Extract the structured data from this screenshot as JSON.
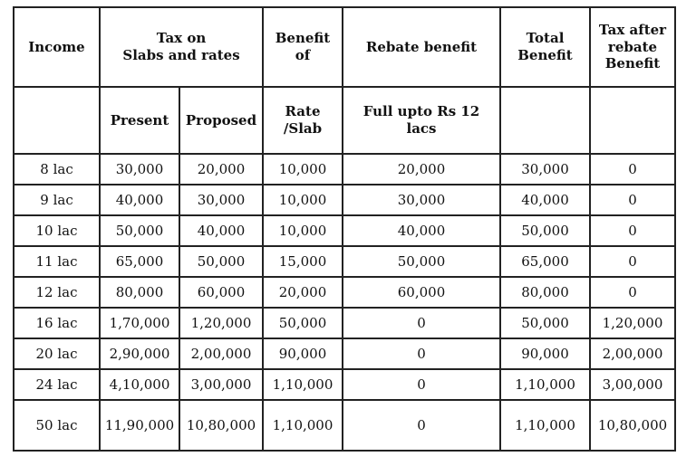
{
  "header": {
    "income": "Income",
    "tax_on_line1": "Tax on",
    "tax_on_line2": "Slabs and rates",
    "benefit_line1": "Benefit",
    "benefit_line2": "of",
    "rebate": "Rebate benefit",
    "total_line1": "Total",
    "total_line2": "Benefit",
    "after_line1": "Tax after",
    "after_line2": "rebate",
    "after_line3": "Benefit"
  },
  "subheader": {
    "present": "Present",
    "proposed": "Proposed",
    "rate_line1": "Rate",
    "rate_line2": "/Slab",
    "full_line1": "Full upto Rs 12",
    "full_line2": "lacs"
  },
  "rows": [
    {
      "income": "8 lac",
      "present": "30,000",
      "proposed": "20,000",
      "benefit": "10,000",
      "rebate": "20,000",
      "total": "30,000",
      "after": "0"
    },
    {
      "income": "9 lac",
      "present": "40,000",
      "proposed": "30,000",
      "benefit": "10,000",
      "rebate": "30,000",
      "total": "40,000",
      "after": "0"
    },
    {
      "income": "10 lac",
      "present": "50,000",
      "proposed": "40,000",
      "benefit": "10,000",
      "rebate": "40,000",
      "total": "50,000",
      "after": "0"
    },
    {
      "income": "11 lac",
      "present": "65,000",
      "proposed": "50,000",
      "benefit": "15,000",
      "rebate": "50,000",
      "total": "65,000",
      "after": "0"
    },
    {
      "income": "12 lac",
      "present": "80,000",
      "proposed": "60,000",
      "benefit": "20,000",
      "rebate": "60,000",
      "total": "80,000",
      "after": "0"
    },
    {
      "income": "16 lac",
      "present": "1,70,000",
      "proposed": "1,20,000",
      "benefit": "50,000",
      "rebate": "0",
      "total": "50,000",
      "after": "1,20,000"
    },
    {
      "income": "20 lac",
      "present": "2,90,000",
      "proposed": "2,00,000",
      "benefit": "90,000",
      "rebate": "0",
      "total": "90,000",
      "after": "2,00,000"
    },
    {
      "income": "24 lac",
      "present": "4,10,000",
      "proposed": "3,00,000",
      "benefit": "1,10,000",
      "rebate": "0",
      "total": "1,10,000",
      "after": "3,00,000"
    },
    {
      "income": "50 lac",
      "present": "11,90,000",
      "proposed": "10,80,000",
      "benefit": "1,10,000",
      "rebate": "0",
      "total": "1,10,000",
      "after": "10,80,000"
    }
  ]
}
